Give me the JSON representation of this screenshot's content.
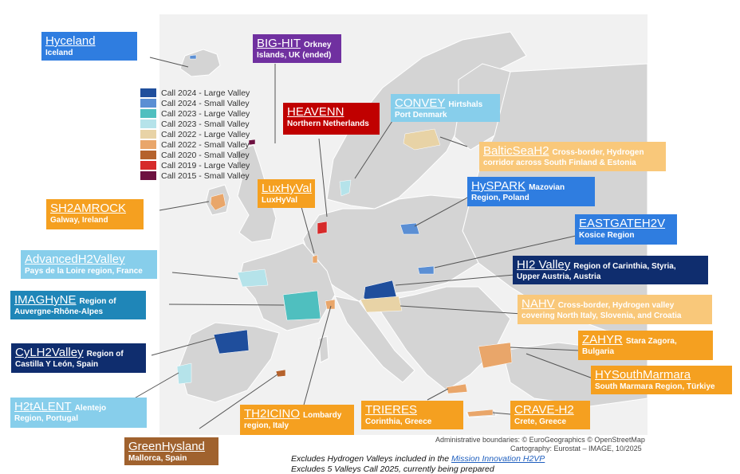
{
  "legend": [
    {
      "label": "Call 2024 - Large Valley",
      "color": "#1f4e9c"
    },
    {
      "label": "Call 2024 - Small Valley",
      "color": "#5b8fd4"
    },
    {
      "label": "Call 2023 - Large Valley",
      "color": "#4fbfbf"
    },
    {
      "label": "Call 2023 - Small Valley",
      "color": "#b5e3ea"
    },
    {
      "label": "Call 2022 - Large Valley",
      "color": "#e8d3a6"
    },
    {
      "label": "Call 2022 - Small Valley",
      "color": "#e9a66a"
    },
    {
      "label": "Call 2020 - Small Valley",
      "color": "#b5622c"
    },
    {
      "label": "Call 2019 - Large Valley",
      "color": "#d62a2a"
    },
    {
      "label": "Call 2015 - Small Valley",
      "color": "#6d1140"
    }
  ],
  "valleys": [
    {
      "id": "hyceland",
      "title": "Hyceland",
      "sub": "Iceland",
      "color": "#2f7de0"
    },
    {
      "id": "bighit",
      "title": "BIG-HIT",
      "inline": "Orkney",
      "sub": "Islands, UK (ended)",
      "color": "#7030a0"
    },
    {
      "id": "heavenn",
      "title": "HEAVENN",
      "sub": "Northern Netherlands",
      "color": "#c00000"
    },
    {
      "id": "convey",
      "title": "CONVEY",
      "inline": "Hirtshals",
      "sub": "Port Denmark",
      "color": "#87ceeb"
    },
    {
      "id": "balticseah2",
      "title": "BalticSeaH2",
      "inline": "Cross-border, Hydrogen",
      "sub": "corridor across South Finland & Estonia",
      "color": "#f9c87a"
    },
    {
      "id": "luxhyval",
      "title": "LuxHyVal",
      "sub": "LuxHyVal",
      "color": "#f5a020"
    },
    {
      "id": "hyspark",
      "title": "HySPARK",
      "inline": "Mazovian",
      "sub": "Region, Poland",
      "color": "#2f7de0"
    },
    {
      "id": "sh2amrock",
      "title": "SH2AMROCK",
      "sub": "Galway, Ireland",
      "color": "#f5a020"
    },
    {
      "id": "eastgateh2v",
      "title": "EASTGATEH2V",
      "sub": "Kosice Region",
      "color": "#2f7de0"
    },
    {
      "id": "advancedh2valley",
      "title": "AdvancedH2Valley",
      "sub": "Pays de la Loire region, France",
      "color": "#87ceeb"
    },
    {
      "id": "hi2valley",
      "title": "HI2 Valley",
      "inline": "Region of Carinthia, Styria,",
      "sub": "Upper Austria, Austria",
      "color": "#0f2d6e"
    },
    {
      "id": "imaghyne",
      "title": "IMAGHyNE",
      "inline": "Region of",
      "sub": "Auvergne-Rhône-Alpes",
      "color": "#1f86b8"
    },
    {
      "id": "nahv",
      "title": "NAHV",
      "inline": "Cross-border, Hydrogen valley",
      "sub": "covering North Italy, Slovenia, and Croatia",
      "color": "#f9c87a"
    },
    {
      "id": "cylh2valley",
      "title": "CyLH2Valley",
      "inline": "Region of",
      "sub": "Castilla Y León, Spain",
      "color": "#0f2d6e"
    },
    {
      "id": "zahyr",
      "title": "ZAHYR",
      "inline": "Stara Zagora,",
      "sub": "Bulgaria",
      "color": "#f5a020"
    },
    {
      "id": "hysouthmarmara",
      "title": "HYSouthMarmara",
      "sub": "South Marmara Region, Türkiye",
      "color": "#f5a020"
    },
    {
      "id": "h2talent",
      "title": "H2tALENT",
      "inline": "Alentejo",
      "sub": "Region, Portugal",
      "color": "#87ceeb"
    },
    {
      "id": "th2icino",
      "title": "TH2ICINO",
      "inline": "Lombardy",
      "sub": "region, Italy",
      "color": "#f5a020"
    },
    {
      "id": "trieres",
      "title": "TRIERES",
      "sub": "Corinthia, Greece",
      "color": "#f5a020"
    },
    {
      "id": "craveh2",
      "title": "CRAVE-H2",
      "sub": "Crete, Greece",
      "color": "#f5a020"
    },
    {
      "id": "greenhysland",
      "title": "GreenHysland",
      "sub": "Mallorca, Spain",
      "color": "#a0622e"
    }
  ],
  "footer": {
    "boundaries": "Administrative boundaries: © EuroGeographics © OpenStreetMap",
    "cartography": "Cartography: Eurostat – IMAGE, 10/2025",
    "note1_prefix": "Excludes Hydrogen Valleys included in the ",
    "note1_link": "Mission Innovation H2VP",
    "note2": "Excludes 5 Valleys Call 2025, currently being prepared"
  }
}
